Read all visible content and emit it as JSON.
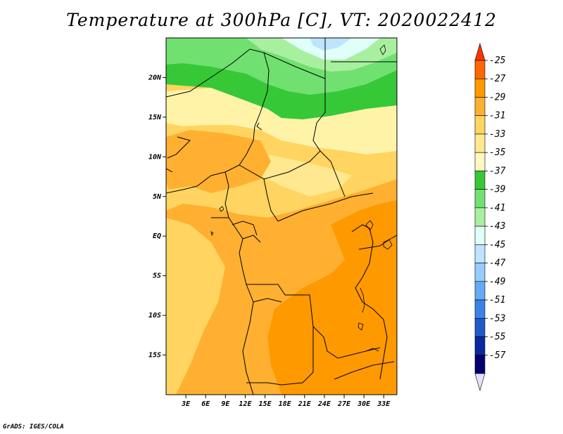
{
  "title": "Temperature at 300hPa [C], VT: 2020022412",
  "credit": "GrADS: IGES/COLA",
  "map": {
    "lat_range": [
      -20,
      25
    ],
    "lon_range": [
      0,
      35
    ],
    "y_ticks": [
      {
        "lat": 20,
        "label": "20N"
      },
      {
        "lat": 15,
        "label": "15N"
      },
      {
        "lat": 10,
        "label": "10N"
      },
      {
        "lat": 5,
        "label": "5N"
      },
      {
        "lat": 0,
        "label": "EQ"
      },
      {
        "lat": -5,
        "label": "5S"
      },
      {
        "lat": -10,
        "label": "10S"
      },
      {
        "lat": -15,
        "label": "15S"
      }
    ],
    "x_ticks": [
      {
        "lon": 3,
        "label": "3E"
      },
      {
        "lon": 6,
        "label": "6E"
      },
      {
        "lon": 9,
        "label": "9E"
      },
      {
        "lon": 12,
        "label": "12E"
      },
      {
        "lon": 15,
        "label": "15E"
      },
      {
        "lon": 18,
        "label": "18E"
      },
      {
        "lon": 21,
        "label": "21E"
      },
      {
        "lon": 24,
        "label": "24E"
      },
      {
        "lon": 27,
        "label": "27E"
      },
      {
        "lon": 30,
        "label": "30E"
      },
      {
        "lon": 33,
        "label": "33E"
      }
    ]
  },
  "colorbar": {
    "labels": [
      "-25",
      "-27",
      "-29",
      "-31",
      "-33",
      "-35",
      "-37",
      "-39",
      "-41",
      "-43",
      "-45",
      "-47",
      "-49",
      "-51",
      "-53",
      "-55",
      "-57"
    ],
    "colors": [
      "#ff3300",
      "#ff6600",
      "#ff9900",
      "#ffb030",
      "#ffd460",
      "#ffe890",
      "#fff8c0",
      "#37c837",
      "#70e070",
      "#a8f0a0",
      "#e0fff8",
      "#bfe4ff",
      "#96ccff",
      "#64aaf5",
      "#3c82e6",
      "#1e5ac8",
      "#0a28a0",
      "#000070",
      "#e8e0ff"
    ]
  }
}
